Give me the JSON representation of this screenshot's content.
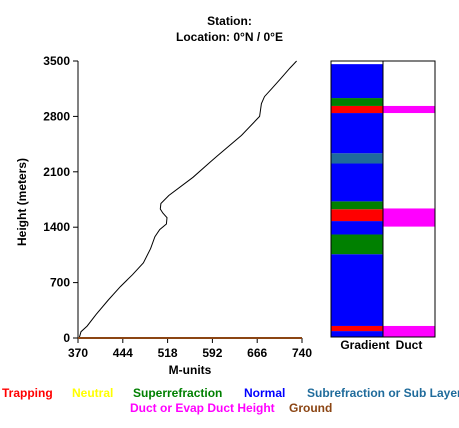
{
  "header": {
    "station_label": "Station:",
    "location_label": "Location:   0°N /   0°E"
  },
  "chart_data": [
    {
      "type": "line",
      "xlabel": "M-units",
      "ylabel": "Height (meters)",
      "xlim": [
        370,
        740
      ],
      "ylim": [
        0,
        3500
      ],
      "xticks": [
        "370",
        "444",
        "518",
        "592",
        "666",
        "740"
      ],
      "yticks": [
        "0",
        "700",
        "1400",
        "2100",
        "2800",
        "3500"
      ],
      "grid": false,
      "series": [
        {
          "color": "#000000",
          "points": [
            [
              372,
              0
            ],
            [
              375,
              80
            ],
            [
              385,
              150
            ],
            [
              400,
              300
            ],
            [
              420,
              480
            ],
            [
              440,
              650
            ],
            [
              460,
              800
            ],
            [
              478,
              950
            ],
            [
              490,
              1130
            ],
            [
              497,
              1280
            ],
            [
              505,
              1370
            ],
            [
              516,
              1440
            ],
            [
              517,
              1520
            ],
            [
              510,
              1580
            ],
            [
              506,
              1630
            ],
            [
              507,
              1700
            ],
            [
              520,
              1800
            ],
            [
              560,
              2030
            ],
            [
              588,
              2220
            ],
            [
              600,
              2300
            ],
            [
              640,
              2560
            ],
            [
              670,
              2800
            ],
            [
              673,
              2960
            ],
            [
              678,
              3050
            ],
            [
              690,
              3150
            ],
            [
              704,
              3270
            ],
            [
              720,
              3410
            ],
            [
              731,
              3500
            ]
          ]
        },
        {
          "color": "#8b4513",
          "points": [
            [
              370,
              0
            ],
            [
              740,
              0
            ]
          ]
        }
      ]
    },
    {
      "type": "heatmap",
      "title": "Gradient",
      "ylim": [
        0,
        3500
      ],
      "bands": [
        {
          "from": 0,
          "to": 75,
          "color": "#0000ff"
        },
        {
          "from": 75,
          "to": 140,
          "color": "#ff0000"
        },
        {
          "from": 140,
          "to": 1050,
          "color": "#0000ff"
        },
        {
          "from": 1050,
          "to": 1300,
          "color": "#008000"
        },
        {
          "from": 1300,
          "to": 1470,
          "color": "#0000ff"
        },
        {
          "from": 1470,
          "to": 1620,
          "color": "#ff0000"
        },
        {
          "from": 1620,
          "to": 1720,
          "color": "#008000"
        },
        {
          "from": 1720,
          "to": 2200,
          "color": "#0000ff"
        },
        {
          "from": 2200,
          "to": 2330,
          "color": "#1f6b9b"
        },
        {
          "from": 2330,
          "to": 2840,
          "color": "#0000ff"
        },
        {
          "from": 2840,
          "to": 2930,
          "color": "#ff0000"
        },
        {
          "from": 2930,
          "to": 3030,
          "color": "#008000"
        },
        {
          "from": 3030,
          "to": 3460,
          "color": "#0000ff"
        }
      ]
    },
    {
      "type": "heatmap",
      "title": "Duct",
      "ylim": [
        0,
        3500
      ],
      "bands": [
        {
          "from": 0,
          "to": 140,
          "color": "#ff00ff"
        },
        {
          "from": 1400,
          "to": 1630,
          "color": "#ff00ff"
        },
        {
          "from": 2840,
          "to": 2930,
          "color": "#ff00ff"
        }
      ]
    }
  ],
  "legend": [
    {
      "label": "Trapping",
      "color": "#ff0000"
    },
    {
      "label": "Neutral",
      "color": "#ffff00"
    },
    {
      "label": "Superrefraction",
      "color": "#008000"
    },
    {
      "label": "Normal",
      "color": "#0000ff"
    },
    {
      "label": "Subrefraction or Sub Layer",
      "color": "#1f6b9b"
    },
    {
      "label": "Duct or Evap Duct Height",
      "color": "#ff00ff"
    },
    {
      "label": "Ground",
      "color": "#8b4513"
    }
  ]
}
